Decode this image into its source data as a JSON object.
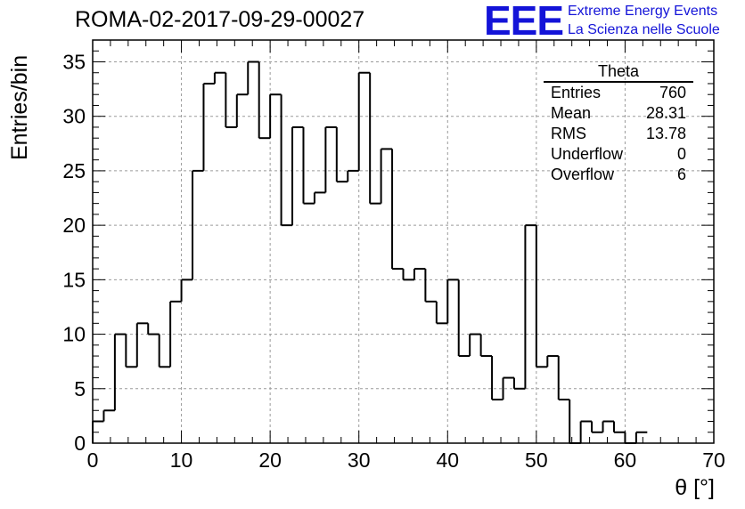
{
  "header": {
    "run_title": "ROMA-02-2017-09-29-00027",
    "logo": "EEE",
    "logo_line1": "Extreme Energy Events",
    "logo_line2": "La Scienza nelle Scuole"
  },
  "stats_box": {
    "title": "Theta",
    "rows": [
      {
        "label": "Entries",
        "value": "760"
      },
      {
        "label": "Mean",
        "value": "28.31"
      },
      {
        "label": "RMS",
        "value": "13.78"
      },
      {
        "label": "Underflow",
        "value": "0"
      },
      {
        "label": "Overflow",
        "value": "6"
      }
    ]
  },
  "colors": {
    "logo": "#1414d8",
    "line": "#000000",
    "grid": "#9a9a9a"
  },
  "chart_data": {
    "type": "bar",
    "style": "step-histogram",
    "xlabel": "θ [°]",
    "ylabel": "Entries/bin",
    "xlim": [
      0,
      70
    ],
    "ylim": [
      0,
      37
    ],
    "x_ticks": [
      0,
      10,
      20,
      30,
      40,
      50,
      60,
      70
    ],
    "y_ticks": [
      0,
      5,
      10,
      15,
      20,
      25,
      30,
      35
    ],
    "grid": true,
    "bin_width": 1.25,
    "bin_edges_start": 0,
    "values": [
      2,
      3,
      10,
      7,
      11,
      10,
      7,
      13,
      15,
      25,
      33,
      34,
      29,
      32,
      35,
      28,
      32,
      20,
      29,
      22,
      23,
      29,
      24,
      25,
      34,
      22,
      27,
      16,
      15,
      16,
      13,
      11,
      15,
      8,
      10,
      8,
      4,
      6,
      5,
      20,
      7,
      8,
      4,
      0,
      2,
      1,
      2,
      1,
      0,
      1
    ]
  }
}
